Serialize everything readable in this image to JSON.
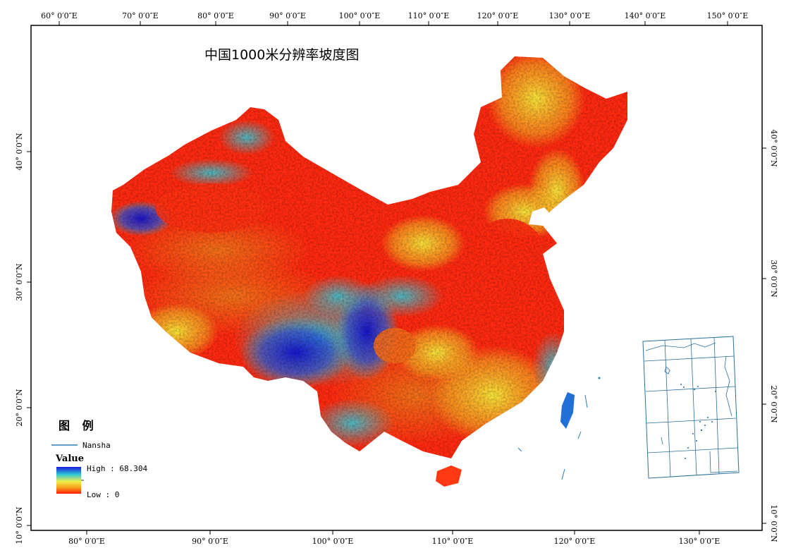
{
  "map": {
    "title": "中国1000米分辨率坡度图",
    "top_ticks": [
      "60° 0′0″E",
      "70° 0′0″E",
      "80° 0′0″E",
      "90° 0′0″E",
      "100° 0′0″E",
      "110° 0′0″E",
      "120° 0′0″E",
      "130° 0′0″E",
      "140° 0′0″E",
      "150° 0′0″E"
    ],
    "bottom_ticks": [
      "80° 0′0″E",
      "90° 0′0″E",
      "100° 0′0″E",
      "110° 0′0″E",
      "120° 0′0″E",
      "130° 0′0″E"
    ],
    "left_ticks": [
      "40° 0′0″N",
      "30° 0′0″N",
      "20° 0′0″N",
      "10° 0′0″N"
    ],
    "right_ticks": [
      "40° 0′0″N",
      "30° 0′0″N",
      "20° 0′0″N",
      "10° 0′0″N"
    ],
    "colors": {
      "high": "#1a1adc",
      "mid_high": "#2bc6d6",
      "mid": "#f3f04a",
      "mid_low": "#f69a1c",
      "low": "#ff1a0a"
    }
  },
  "legend": {
    "title": "图 例",
    "nansha_label": "Nansha",
    "value_title": "Value",
    "high_label": "High : 68.304",
    "low_label": "Low : 0",
    "line_color": "#2a7fb6"
  }
}
